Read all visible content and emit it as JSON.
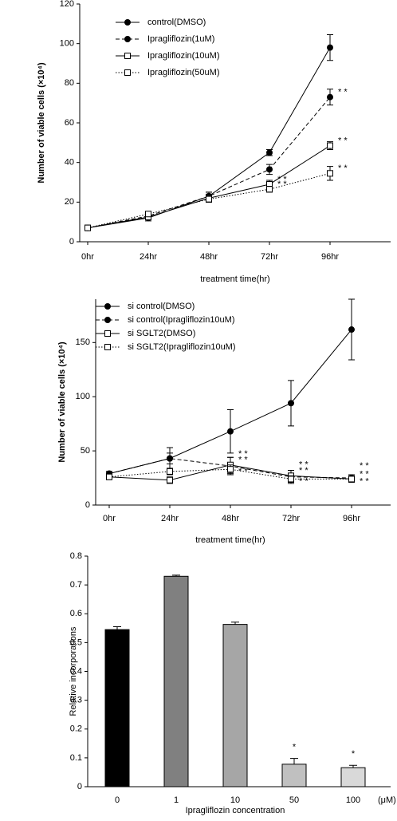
{
  "chart_data": [
    {
      "type": "line",
      "y_label": "Number of viable cells (×10⁴)",
      "x_label": "treatment time(hr)",
      "categories": [
        "0hr",
        "24hr",
        "48hr",
        "72hr",
        "96hr"
      ],
      "ylim": [
        0,
        120
      ],
      "yticks": [
        0,
        20,
        40,
        60,
        80,
        100,
        120
      ],
      "series": [
        {
          "name": "control(DMSO)",
          "color": "#000000",
          "line_style": "solid",
          "marker": "circle",
          "marker_filled": true,
          "values": [
            7,
            12,
            23,
            45,
            98
          ],
          "errors": [
            0.5,
            1.5,
            2,
            1.5,
            6.5
          ],
          "significance": [
            null,
            null,
            null,
            null,
            null
          ]
        },
        {
          "name": "Ipragliflozin(1uM)",
          "color": "#000000",
          "line_style": "dashed",
          "marker": "circle",
          "marker_filled": true,
          "values": [
            7,
            13,
            23,
            36.5,
            73
          ],
          "errors": [
            0.5,
            1,
            2,
            2.5,
            4
          ],
          "significance": [
            null,
            null,
            null,
            null,
            "* *"
          ]
        },
        {
          "name": "Ipragliflozin(10uM)",
          "color": "#000000",
          "line_style": "solid",
          "marker": "square",
          "marker_filled": false,
          "values": [
            7,
            12.5,
            22,
            29,
            48.5
          ],
          "errors": [
            0.5,
            1,
            2,
            2,
            2
          ],
          "significance": [
            null,
            null,
            null,
            "* *",
            "* *"
          ]
        },
        {
          "name": "Ipragliflozin(50uM)",
          "color": "#000000",
          "line_style": "dotted",
          "marker": "square",
          "marker_filled": false,
          "values": [
            7,
            14,
            21.5,
            26.5,
            34.5
          ],
          "errors": [
            0.5,
            1,
            1.5,
            1.5,
            3.5
          ],
          "significance": [
            null,
            null,
            null,
            "* *",
            "* *"
          ]
        }
      ]
    },
    {
      "type": "line",
      "y_label": "Number of viable cells (×10⁴)",
      "x_label": "treatment time(hr)",
      "categories": [
        "0hr",
        "24hr",
        "48hr",
        "72hr",
        "96hr"
      ],
      "ylim": [
        0,
        190
      ],
      "yticks": [
        0,
        50,
        100,
        150
      ],
      "series": [
        {
          "name": "si control(DMSO)",
          "color": "#000000",
          "line_style": "solid",
          "marker": "circle",
          "marker_filled": true,
          "values": [
            29,
            43,
            68,
            94,
            162
          ],
          "errors": [
            2,
            10,
            20,
            21,
            28
          ],
          "significance": [
            null,
            null,
            null,
            null,
            null
          ]
        },
        {
          "name": "si control(Ipragliflozin10uM)",
          "color": "#000000",
          "line_style": "dashed",
          "marker": "circle",
          "marker_filled": true,
          "values": [
            29,
            43,
            36,
            26,
            25
          ],
          "errors": [
            2,
            5,
            8,
            6,
            3
          ],
          "significance": [
            null,
            null,
            "* *",
            "* *",
            "* *"
          ]
        },
        {
          "name": "si SGLT2(DMSO)",
          "color": "#000000",
          "line_style": "solid",
          "marker": "square",
          "marker_filled": false,
          "values": [
            26,
            23,
            37,
            27,
            24
          ],
          "errors": [
            2,
            3,
            7,
            5,
            3
          ],
          "significance": [
            null,
            null,
            "* *",
            "* *",
            "* *"
          ]
        },
        {
          "name": "si SGLT2(Ipragliflozin10uM)",
          "color": "#000000",
          "line_style": "dotted",
          "marker": "square",
          "marker_filled": false,
          "values": [
            26,
            31,
            33,
            24,
            24
          ],
          "errors": [
            2,
            3,
            4,
            3,
            2
          ],
          "significance": [
            null,
            null,
            "* *",
            "* *",
            "* *"
          ]
        }
      ]
    },
    {
      "type": "bar",
      "y_label": "Relative incorporations",
      "x_label": "Ipragliflozin concentration",
      "x_unit": "(μM)",
      "categories": [
        "0",
        "1",
        "10",
        "50",
        "100"
      ],
      "values": [
        0.545,
        0.73,
        0.563,
        0.078,
        0.066
      ],
      "errors": [
        0.01,
        0.004,
        0.008,
        0.02,
        0.008
      ],
      "significance": [
        null,
        null,
        null,
        "*",
        "*"
      ],
      "colors": [
        "#000000",
        "#808080",
        "#a6a6a6",
        "#c0c0c0",
        "#d9d9d9"
      ],
      "ylim": [
        0,
        0.8
      ],
      "yticks": [
        0,
        0.1,
        0.2,
        0.3,
        0.4,
        0.5,
        0.6,
        0.7,
        0.8
      ]
    }
  ]
}
